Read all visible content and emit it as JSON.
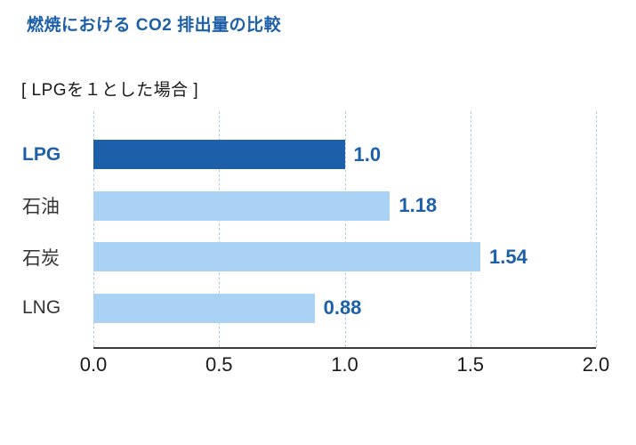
{
  "header": {
    "title": "燃焼における CO2 排出量の比較"
  },
  "subtitle": "[ LPGを１とした場合 ]",
  "colors": {
    "title": "#1d5fa8",
    "bar_primary": "#1d5fa8",
    "bar_secondary": "#a9d2f4",
    "value_label": "#1d5fa8",
    "axis": "#3a3a3a",
    "gridline": "#b3c9dd"
  },
  "chart_data": {
    "type": "bar",
    "orientation": "horizontal",
    "title": "燃焼における CO2 排出量の比較",
    "subtitle": "[ LPGを１とした場合 ]",
    "categories": [
      "LPG",
      "石油",
      "石炭",
      "LNG"
    ],
    "values": [
      1.0,
      1.18,
      1.54,
      0.88
    ],
    "value_labels": [
      "1.0",
      "1.18",
      "1.54",
      "0.88"
    ],
    "highlight_index": 0,
    "xlabel": "",
    "ylabel": "",
    "xlim": [
      0.0,
      2.0
    ],
    "x_ticks": [
      "0.0",
      "0.5",
      "1.0",
      "1.5",
      "2.0"
    ],
    "grid": "dashed-vertical",
    "legend": "none"
  }
}
